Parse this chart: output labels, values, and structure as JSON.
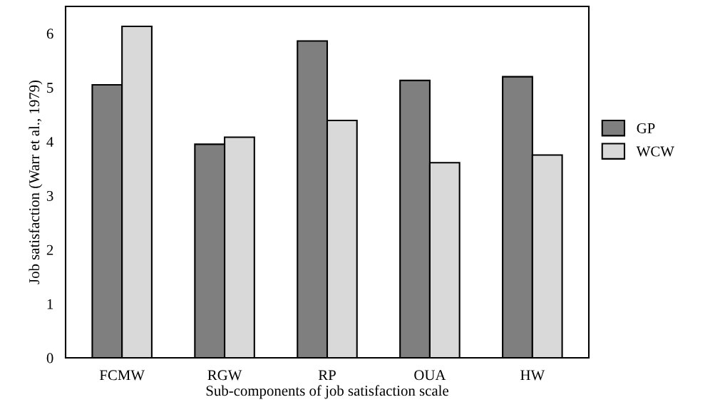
{
  "chart_data": {
    "type": "bar",
    "xlabel": "Sub-components of job satisfaction scale",
    "ylabel": "Job satisfaction (Warr et al., 1979)",
    "categories": [
      "FCMW",
      "RGW",
      "RP",
      "OUA",
      "HW"
    ],
    "series": [
      {
        "name": "GP",
        "color": "#7f7f7f",
        "values": [
          5.05,
          3.95,
          5.86,
          5.13,
          5.2
        ]
      },
      {
        "name": "WCW",
        "color": "#d9d9d9",
        "values": [
          6.13,
          4.08,
          4.39,
          3.61,
          3.75
        ]
      }
    ],
    "ylim": [
      0,
      6.5
    ],
    "yticks": [
      0,
      1,
      2,
      3,
      4,
      5,
      6
    ],
    "grid": false,
    "legend": "right"
  }
}
